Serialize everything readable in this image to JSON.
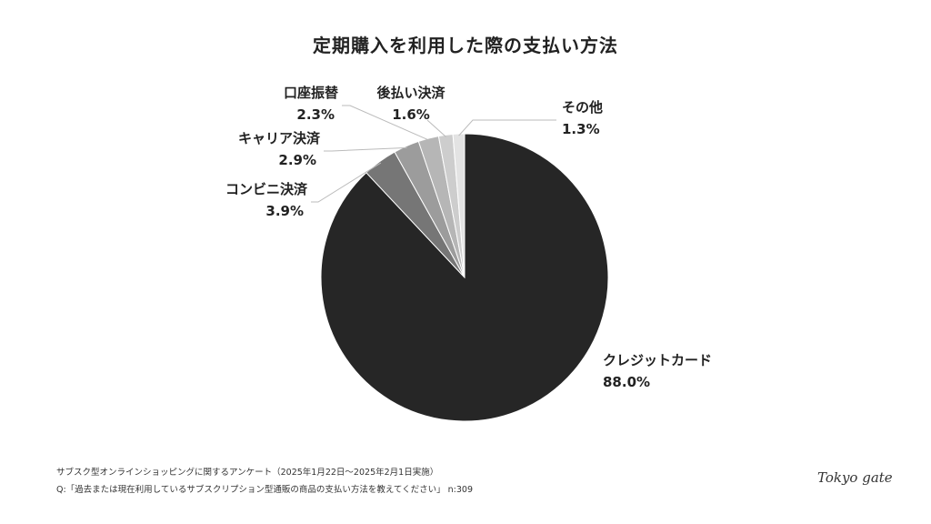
{
  "chart_data": {
    "type": "pie",
    "title": "定期購入を利用した際の支払い方法",
    "slices": [
      {
        "label": "クレジットカード",
        "value_label": "88.0%",
        "value": 88.0,
        "color": "#262626"
      },
      {
        "label": "コンビニ決済",
        "value_label": "3.9%",
        "value": 3.9,
        "color": "#767676"
      },
      {
        "label": "キャリア決済",
        "value_label": "2.9%",
        "value": 2.9,
        "color": "#9c9c9c"
      },
      {
        "label": "口座振替",
        "value_label": "2.3%",
        "value": 2.3,
        "color": "#b6b6b6"
      },
      {
        "label": "後払い決済",
        "value_label": "1.6%",
        "value": 1.6,
        "color": "#cdcdcd"
      },
      {
        "label": "その他",
        "value_label": "1.3%",
        "value": 1.3,
        "color": "#e3e3e3"
      }
    ]
  },
  "footer": {
    "survey": "サブスク型オンラインショッピングに関するアンケート（2025年1月22日〜2025年2月1日実施）",
    "question": "Q:「過去または現在利用しているサブスクリプション型通販の商品の支払い方法を教えてください」 n:309"
  },
  "logo": {
    "text": "Tokyo gate"
  }
}
